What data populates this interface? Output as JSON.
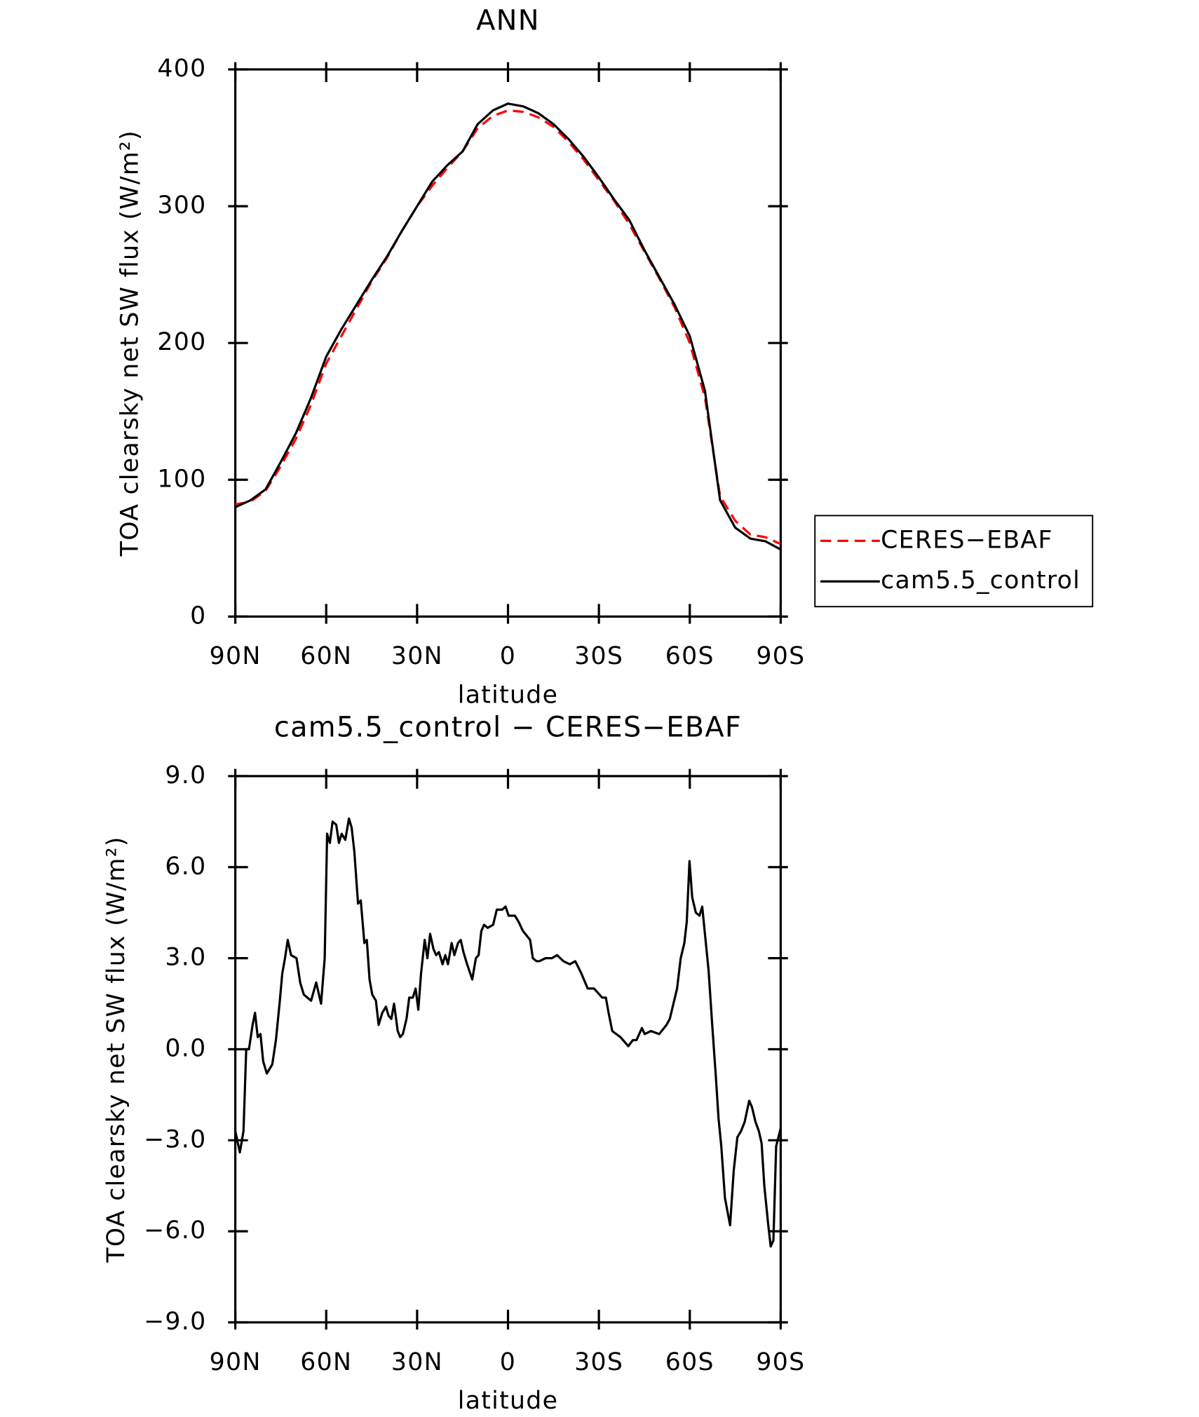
{
  "chart_data": [
    {
      "type": "line",
      "title": "ANN",
      "xlabel": "latitude",
      "ylabel": "TOA clearsky net SW flux (W/m²)",
      "x": [
        90,
        85,
        80,
        75,
        70,
        65,
        60,
        55,
        50,
        45,
        40,
        35,
        30,
        25,
        20,
        15,
        10,
        5,
        0,
        -5,
        -10,
        -15,
        -20,
        -25,
        -30,
        -35,
        -40,
        -45,
        -50,
        -55,
        -60,
        -65,
        -70,
        -75,
        -80,
        -85,
        -90
      ],
      "series": [
        {
          "name": "CERES−EBAF",
          "color": "#ff0000",
          "linestyle": "dashed",
          "values": [
            82,
            84,
            92,
            110,
            130,
            155,
            185,
            205,
            225,
            245,
            262,
            282,
            300,
            315,
            328,
            340,
            357,
            366,
            370,
            369,
            365,
            358,
            347,
            334,
            319,
            304,
            287,
            267,
            247,
            226,
            200,
            160,
            88,
            70,
            60,
            58,
            53
          ]
        },
        {
          "name": "cam5.5_control",
          "color": "#000000",
          "linestyle": "solid",
          "values": [
            80,
            85,
            93,
            113,
            134,
            160,
            190,
            210,
            228,
            246,
            263,
            282,
            300,
            318,
            330,
            340,
            360,
            370,
            375,
            373,
            368,
            360,
            349,
            336,
            321,
            305,
            290,
            268,
            248,
            228,
            205,
            165,
            85,
            65,
            57,
            55,
            49
          ]
        }
      ],
      "xlim": [
        90,
        -90
      ],
      "xticks": [
        {
          "value": 90,
          "label": "90N"
        },
        {
          "value": 60,
          "label": "60N"
        },
        {
          "value": 30,
          "label": "30N"
        },
        0,
        {
          "value": -30,
          "label": "30S"
        },
        {
          "value": -60,
          "label": "60S"
        },
        {
          "value": -90,
          "label": "90S"
        }
      ],
      "ylim": [
        0,
        400
      ],
      "yticks": [
        0,
        100,
        200,
        300,
        400
      ],
      "legend": "right"
    },
    {
      "type": "line",
      "title": "cam5.5_control − CERES−EBAF",
      "xlabel": "latitude",
      "ylabel": "TOA clearsky net SW flux (W/m²)",
      "x": [
        90,
        88.5,
        87.3,
        86.4,
        85.5,
        84.3,
        83.5,
        82.6,
        81.7,
        80.8,
        79.6,
        77.8,
        76.6,
        75.4,
        74.5,
        73.6,
        72.7,
        71.6,
        69.8,
        68.6,
        67.4,
        65.0,
        63.3,
        61.7,
        60.5,
        59.7,
        58.8,
        57.9,
        56.7,
        55.8,
        54.9,
        53.7,
        52.5,
        51.6,
        50.7,
        49.5,
        48.6,
        47.4,
        46.6,
        45.7,
        44.8,
        43.6,
        42.7,
        41.5,
        40.3,
        39.4,
        38.5,
        37.6,
        36.4,
        35.6,
        34.7,
        33.5,
        32.6,
        31.4,
        30.5,
        29.6,
        28.7,
        27.5,
        26.6,
        25.7,
        24.6,
        23.7,
        22.8,
        21.6,
        20.7,
        19.8,
        18.6,
        17.7,
        16.5,
        15.6,
        14.7,
        13.5,
        11.8,
        10.6,
        9.7,
        8.8,
        7.9,
        6.7,
        4.9,
        3.7,
        1.9,
        0.8,
        -0.2,
        -2.3,
        -3.5,
        -4.9,
        -7.3,
        -8.2,
        -9.4,
        -10.3,
        -12.4,
        -14.5,
        -16.2,
        -18.3,
        -20.4,
        -22.2,
        -24.2,
        -26.3,
        -28.4,
        -30.2,
        -31.1,
        -32.3,
        -33.2,
        -34.4,
        -37.1,
        -39.7,
        -41.2,
        -42.4,
        -44.2,
        -45.1,
        -47.2,
        -49.9,
        -52.3,
        -53.4,
        -54.6,
        -55.8,
        -57.0,
        -58.2,
        -59.0,
        -59.9,
        -60.8,
        -62.0,
        -63.2,
        -64.1,
        -65.3,
        -66.2,
        -67.4,
        -68.6,
        -69.5,
        -70.4,
        -71.6,
        -73.3,
        -74.5,
        -75.7,
        -76.9,
        -78.1,
        -79.6,
        -80.5,
        -81.7,
        -82.8,
        -83.7,
        -84.6,
        -85.8,
        -86.7,
        -87.6,
        -88.5,
        -90
      ],
      "series": [
        {
          "color": "#000000",
          "linestyle": "solid",
          "values": [
            -2.7,
            -3.4,
            -2.7,
            0.0,
            0.0,
            0.8,
            1.2,
            0.4,
            0.5,
            -0.4,
            -0.8,
            -0.5,
            0.3,
            1.5,
            2.5,
            3.0,
            3.6,
            3.1,
            3.0,
            2.2,
            1.8,
            1.6,
            2.2,
            1.5,
            3.0,
            7.1,
            6.8,
            7.5,
            7.4,
            6.8,
            7.1,
            6.9,
            7.6,
            7.3,
            6.5,
            4.8,
            4.9,
            3.5,
            3.6,
            2.3,
            1.8,
            1.6,
            0.8,
            1.2,
            1.4,
            1.1,
            1.0,
            1.5,
            0.6,
            0.4,
            0.5,
            1.0,
            1.7,
            1.7,
            2.0,
            1.3,
            2.5,
            3.6,
            3.0,
            3.8,
            3.3,
            3.1,
            3.2,
            2.8,
            3.1,
            2.8,
            3.5,
            3.1,
            3.5,
            3.6,
            3.2,
            2.8,
            2.3,
            3.0,
            3.1,
            3.9,
            4.1,
            4.0,
            4.1,
            4.6,
            4.6,
            4.7,
            4.4,
            4.4,
            4.2,
            3.9,
            3.6,
            3.0,
            2.9,
            2.9,
            3.0,
            3.0,
            3.1,
            2.9,
            2.8,
            2.9,
            2.5,
            2.0,
            2.0,
            1.8,
            1.7,
            1.7,
            1.2,
            0.6,
            0.4,
            0.1,
            0.3,
            0.3,
            0.7,
            0.5,
            0.6,
            0.5,
            0.8,
            1.0,
            1.5,
            2.0,
            3.0,
            3.5,
            4.2,
            6.2,
            5.0,
            4.5,
            4.4,
            4.7,
            3.5,
            2.6,
            0.8,
            -0.9,
            -2.3,
            -3.2,
            -4.9,
            -5.8,
            -4.0,
            -2.9,
            -2.7,
            -2.4,
            -1.7,
            -1.9,
            -2.4,
            -2.7,
            -3.1,
            -4.5,
            -5.7,
            -6.5,
            -6.3,
            -3.2,
            -2.6
          ]
        }
      ],
      "xlim": [
        90,
        -90
      ],
      "xticks": [
        {
          "value": 90,
          "label": "90N"
        },
        {
          "value": 60,
          "label": "60N"
        },
        {
          "value": 30,
          "label": "30N"
        },
        0,
        {
          "value": -30,
          "label": "30S"
        },
        {
          "value": -60,
          "label": "60S"
        },
        {
          "value": -90,
          "label": "90S"
        }
      ],
      "ylim": [
        -9,
        9
      ],
      "yticks": [
        {
          "value": -9,
          "label": "−9.0"
        },
        {
          "value": -6,
          "label": "−6.0"
        },
        {
          "value": -3,
          "label": "−3.0"
        },
        {
          "value": 0,
          "label": "0.0"
        },
        {
          "value": 3,
          "label": "3.0"
        },
        {
          "value": 6,
          "label": "6.0"
        },
        {
          "value": 9,
          "label": "9.0"
        }
      ]
    }
  ]
}
